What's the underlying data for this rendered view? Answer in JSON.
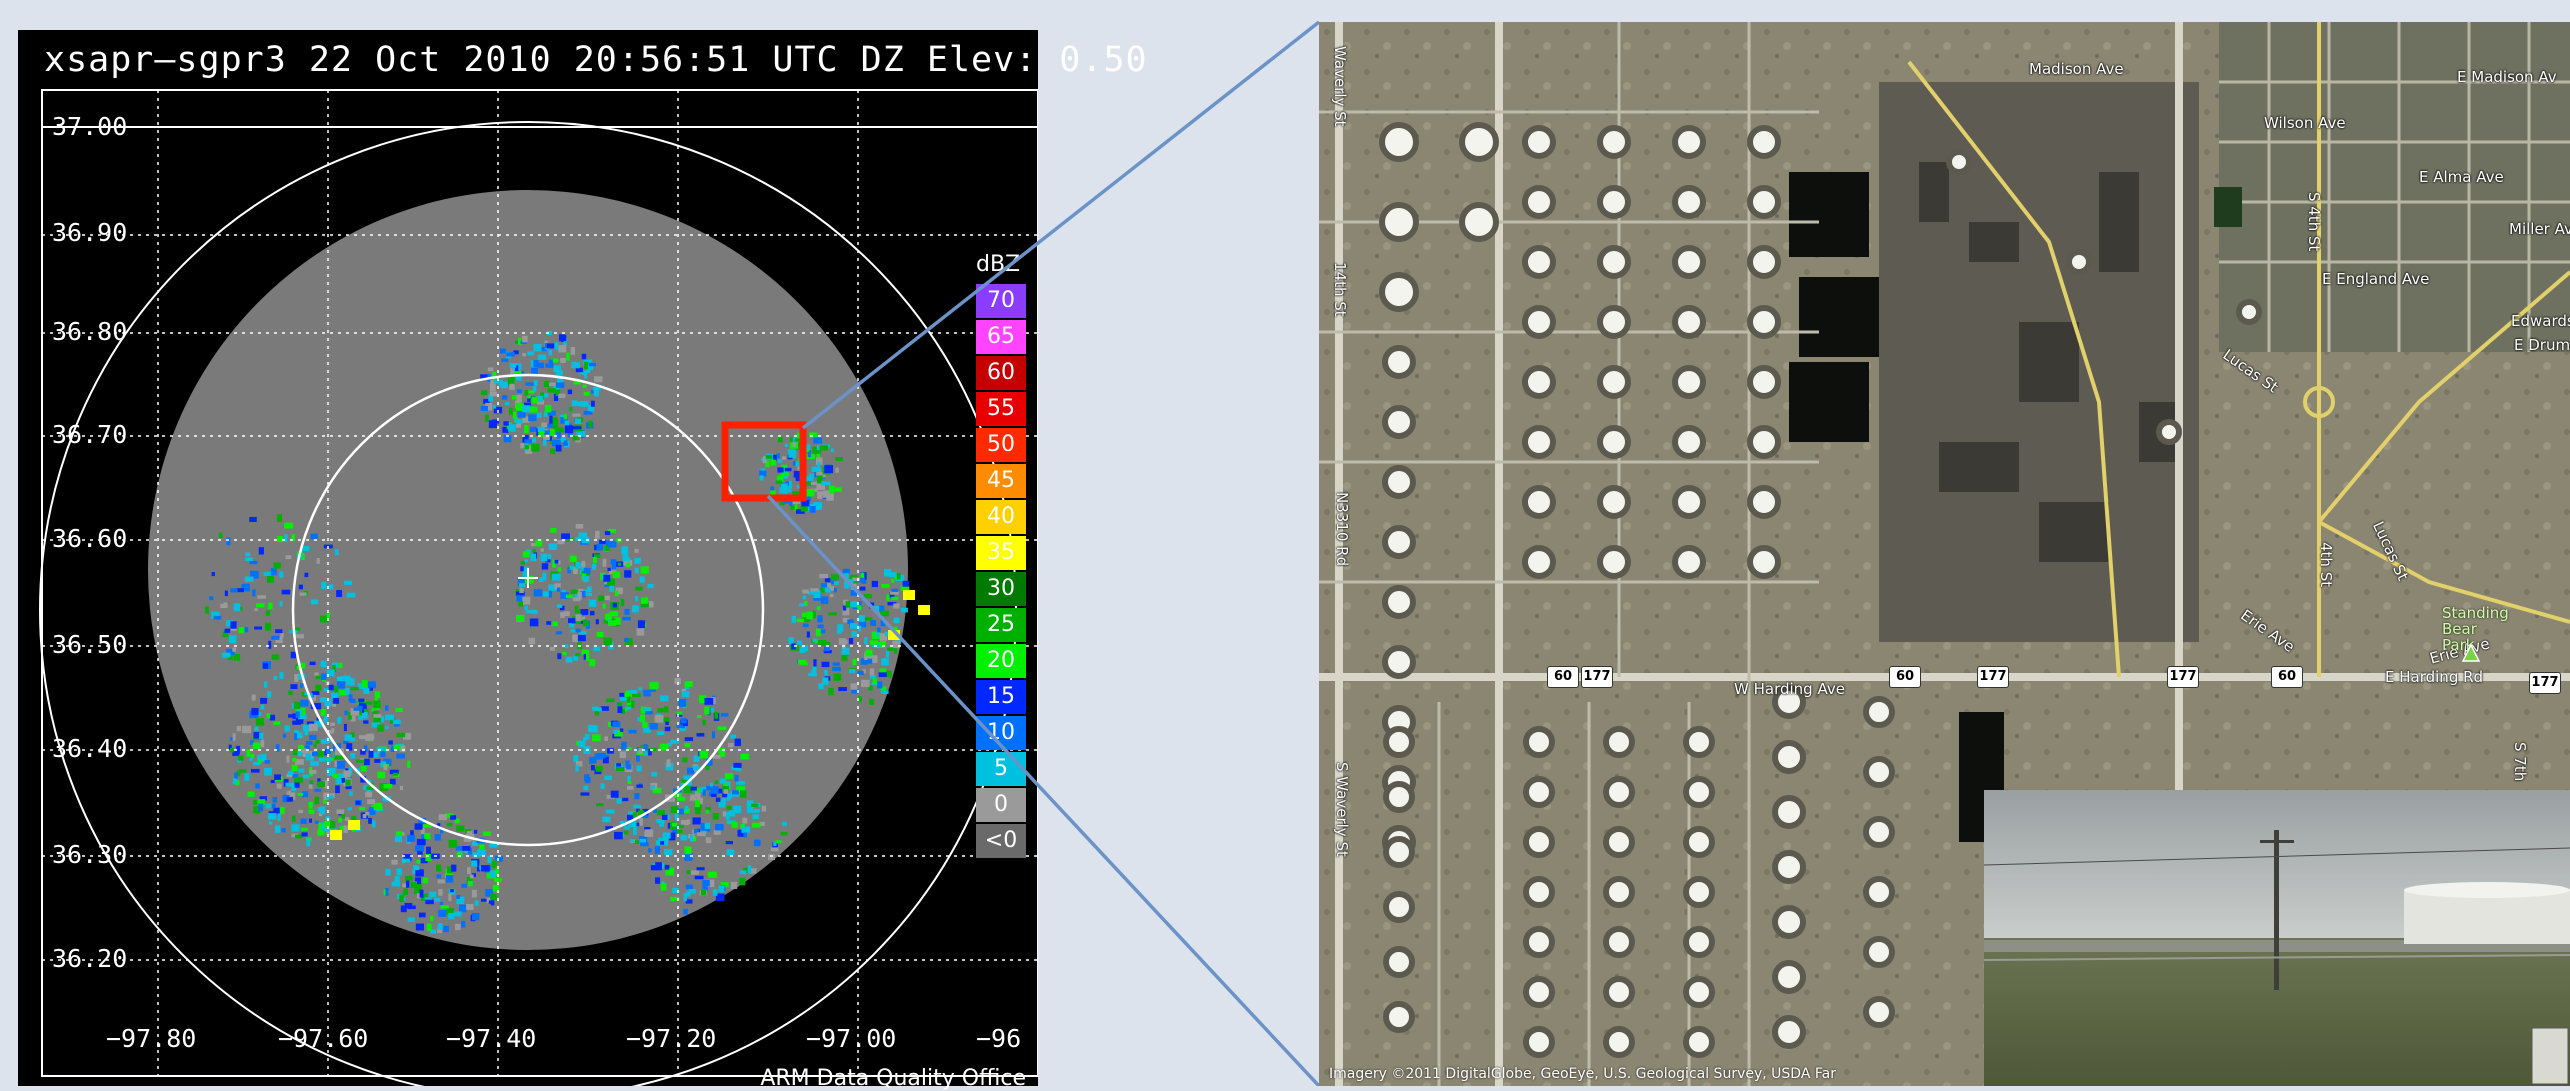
{
  "radar": {
    "title": "xsapr–sgpr3   22 Oct 2010 20:56:51 UTC   DZ   Elev: 0.50",
    "y_ticks": [
      "37.00",
      "36.90",
      "36.80",
      "36.70",
      "36.60",
      "36.50",
      "36.40",
      "36.30",
      "36.20"
    ],
    "x_ticks": [
      "−97.80",
      "−97.60",
      "−97.40",
      "−97.20",
      "−97.00",
      "−96"
    ],
    "footer": "ARM Data Quality Office",
    "colorbar_title": "dBZ",
    "colorbar": [
      {
        "label": "70",
        "color": "#8a3cff"
      },
      {
        "label": "65",
        "color": "#ff44ff"
      },
      {
        "label": "60",
        "color": "#c40000"
      },
      {
        "label": "55",
        "color": "#e80000"
      },
      {
        "label": "50",
        "color": "#ff2a00"
      },
      {
        "label": "45",
        "color": "#ff8c00"
      },
      {
        "label": "40",
        "color": "#ffd000"
      },
      {
        "label": "35",
        "color": "#ffff00"
      },
      {
        "label": "30",
        "color": "#007a00"
      },
      {
        "label": "25",
        "color": "#00b000"
      },
      {
        "label": "20",
        "color": "#00f000"
      },
      {
        "label": "15",
        "color": "#0028ff"
      },
      {
        "label": "10",
        "color": "#0070ff"
      },
      {
        "label": "5",
        "color": "#00c0e0"
      },
      {
        "label": "0",
        "color": "#9a9a9a"
      },
      {
        "label": "<0",
        "color": "#6a6a6a"
      }
    ],
    "highlight_color": "#ff2000"
  },
  "connector_color": "#6b93c7",
  "map": {
    "credit": "Imagery ©2011 DigitalGlobe, GeoEye, U.S. Geological Survey, USDA Far",
    "roads": {
      "madison_ave": "Madison Ave",
      "e_madison_ave": "E Madison Av",
      "wilson_ave": "Wilson Ave",
      "e_alma_ave": "E Alma Ave",
      "e_england_ave": "E England Ave",
      "miller_av": "Miller Av",
      "edwards": "Edwards",
      "e_drum": "E Drum",
      "lucas_st_top": "Lucas St",
      "lucas_st": "Lucas St",
      "s_4th_st": "S 4th St",
      "fourth_st": "4th St",
      "erie_ave_1": "Erie Ave",
      "erie_ave_2": "Erie Ave",
      "w_harding_ave": "W Harding Ave",
      "e_harding_rd": "E Harding Rd",
      "waverly_top": "Waverly St",
      "s_waverly_st": "S Waverly St",
      "n3310_rd": "N3310 Rd",
      "s_7th": "S 7th",
      "fourteenth_st": "14th St"
    },
    "park": "Standing Bear Park",
    "hwy_60": "60",
    "hwy_177": "177",
    "marker_color": "#7ad341"
  }
}
